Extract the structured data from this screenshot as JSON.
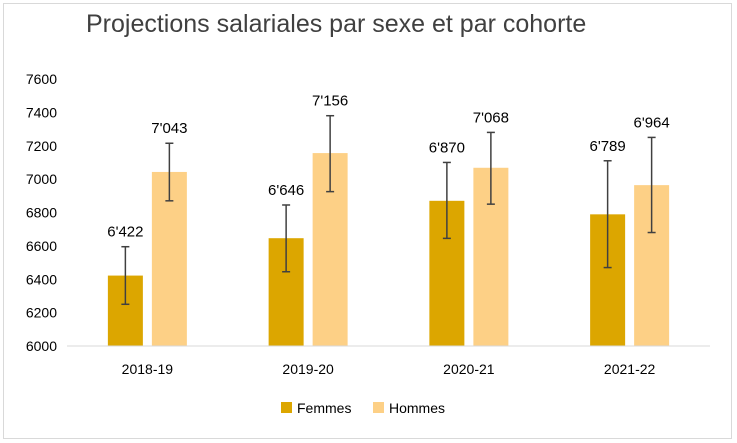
{
  "chart_data": {
    "type": "bar",
    "title": "Projections salariales par sexe et par cohorte",
    "categories": [
      "2018-19",
      "2019-20",
      "2020-21",
      "2021-22"
    ],
    "series": [
      {
        "name": "Femmes",
        "color": "#dca600",
        "values": [
          6422,
          6646,
          6870,
          6789
        ],
        "labels": [
          "6'422",
          "6'646",
          "6'870",
          "6'789"
        ],
        "error_low": [
          6250,
          6445,
          6645,
          6470
        ],
        "error_high": [
          6595,
          6845,
          7100,
          7110
        ]
      },
      {
        "name": "Hommes",
        "color": "#fdd086",
        "values": [
          7043,
          7156,
          7068,
          6964
        ],
        "labels": [
          "7'043",
          "7'156",
          "7'068",
          "6'964"
        ],
        "error_low": [
          6870,
          6925,
          6850,
          6680
        ],
        "error_high": [
          7215,
          7380,
          7280,
          7250
        ]
      }
    ],
    "yticks": [
      6000,
      6200,
      6400,
      6600,
      6800,
      7000,
      7200,
      7400,
      7600
    ],
    "ylim": [
      6000,
      7600
    ],
    "xlabel": "",
    "ylabel": "",
    "legend_position": "bottom",
    "grid": false
  }
}
